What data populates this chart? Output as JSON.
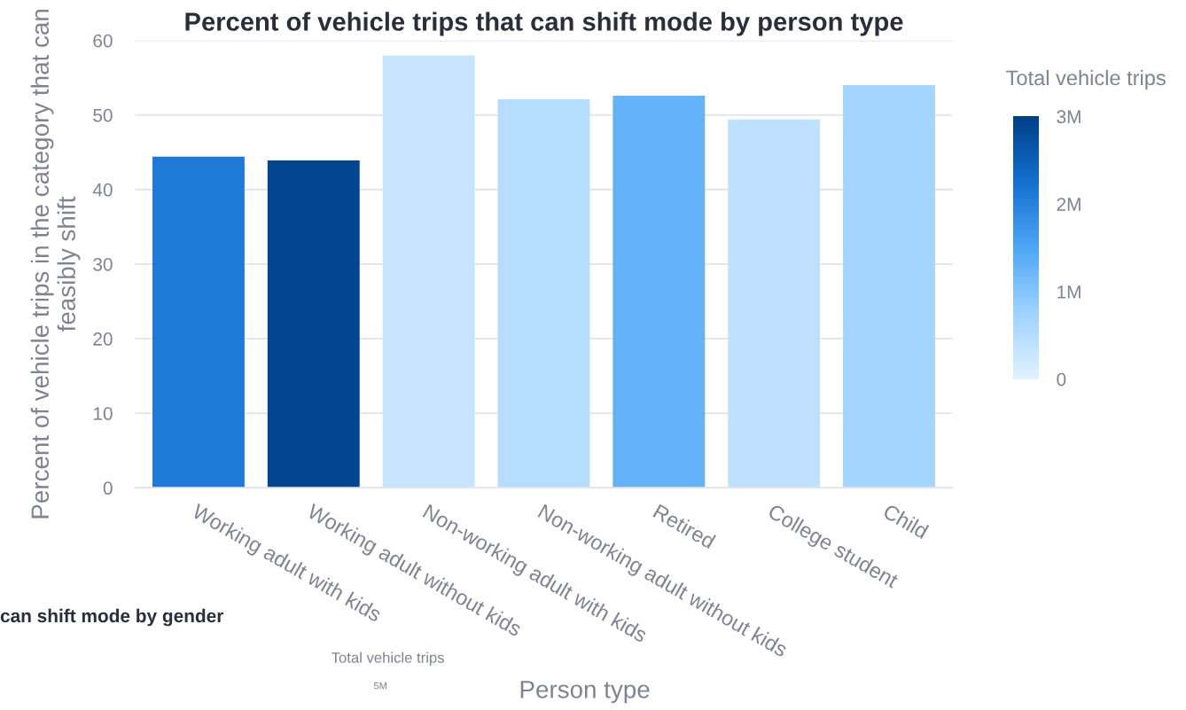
{
  "chart_data": [
    {
      "type": "bar",
      "title": "Percent of vehicle trips that can shift mode by person type",
      "xlabel": "Person type",
      "ylabel": "Percent of vehicle trips in the category that can feasibly shift",
      "categories": [
        "Working adult with kids",
        "Working adult without kids",
        "Non-working adult with kids",
        "Non-working adult without kids",
        "Retired",
        "College student",
        "Child"
      ],
      "values": [
        44.4,
        43.9,
        58.0,
        52.1,
        52.6,
        49.4,
        54.0
      ],
      "cvalues": [
        2100000,
        2900000,
        300000,
        500000,
        1300000,
        400000,
        700000
      ],
      "clabel": "Total vehicle trips",
      "clim": [
        0,
        3000000
      ],
      "cticks": [
        {
          "value": 0,
          "label": "0"
        },
        {
          "value": 1000000,
          "label": "1M"
        },
        {
          "value": 2000000,
          "label": "2M"
        },
        {
          "value": 3000000,
          "label": "3M"
        }
      ],
      "ylim": [
        0,
        60
      ],
      "yticks": [
        0,
        10,
        20,
        30,
        40,
        50,
        60
      ],
      "grid": "y",
      "legend": false
    },
    {
      "type": "other",
      "title": "can shift mode by gender",
      "annotations": [
        "Total vehicle trips",
        "5M"
      ]
    }
  ]
}
